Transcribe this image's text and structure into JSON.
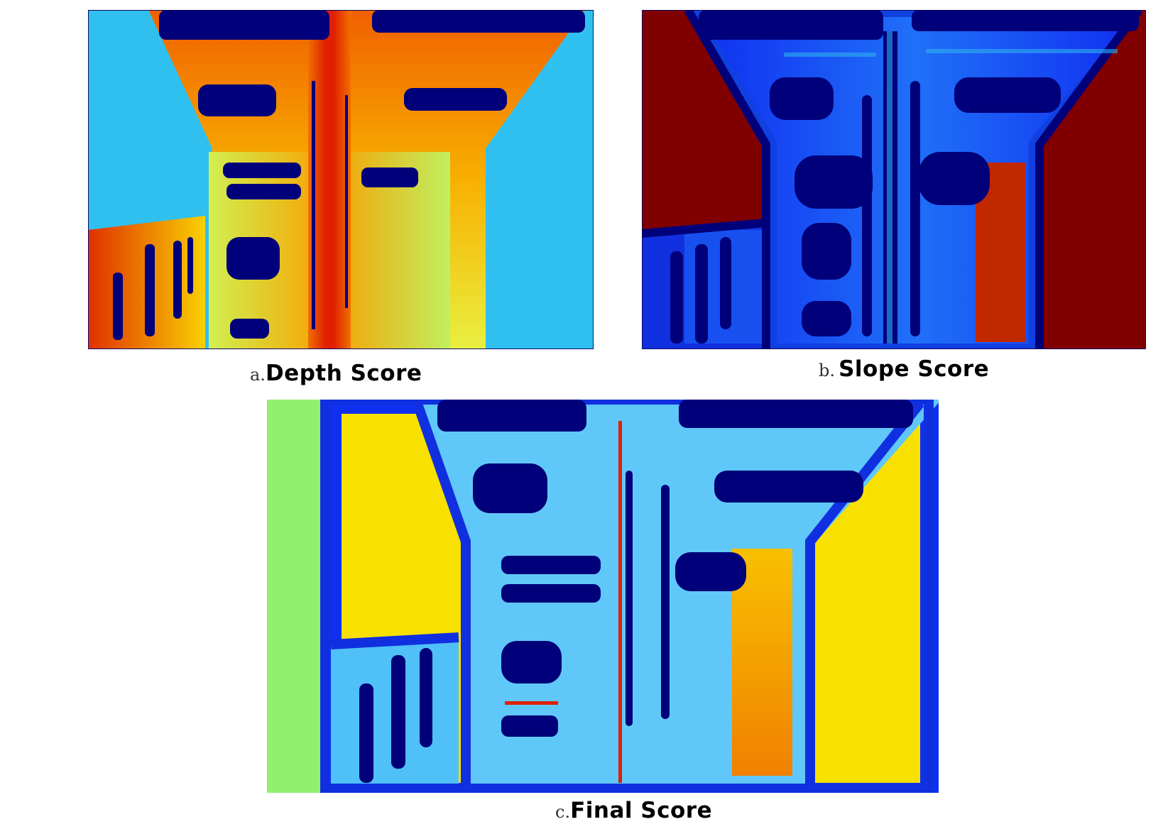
{
  "figure": {
    "panels": [
      {
        "id": "a",
        "letter": "a.",
        "title": "Depth Score"
      },
      {
        "id": "b",
        "letter": "b.",
        "title": "Slope Score"
      },
      {
        "id": "c",
        "letter": "c.",
        "title": "Final Score"
      }
    ]
  },
  "colors": {
    "dark_blue": "#00007a",
    "blue": "#1030f0",
    "cyan": "#30c0f0",
    "light_blue": "#70d0f8",
    "green": "#a0f070",
    "yellow": "#f8e000",
    "orange": "#f89000",
    "red": "#e02000",
    "dark_red": "#800000"
  }
}
